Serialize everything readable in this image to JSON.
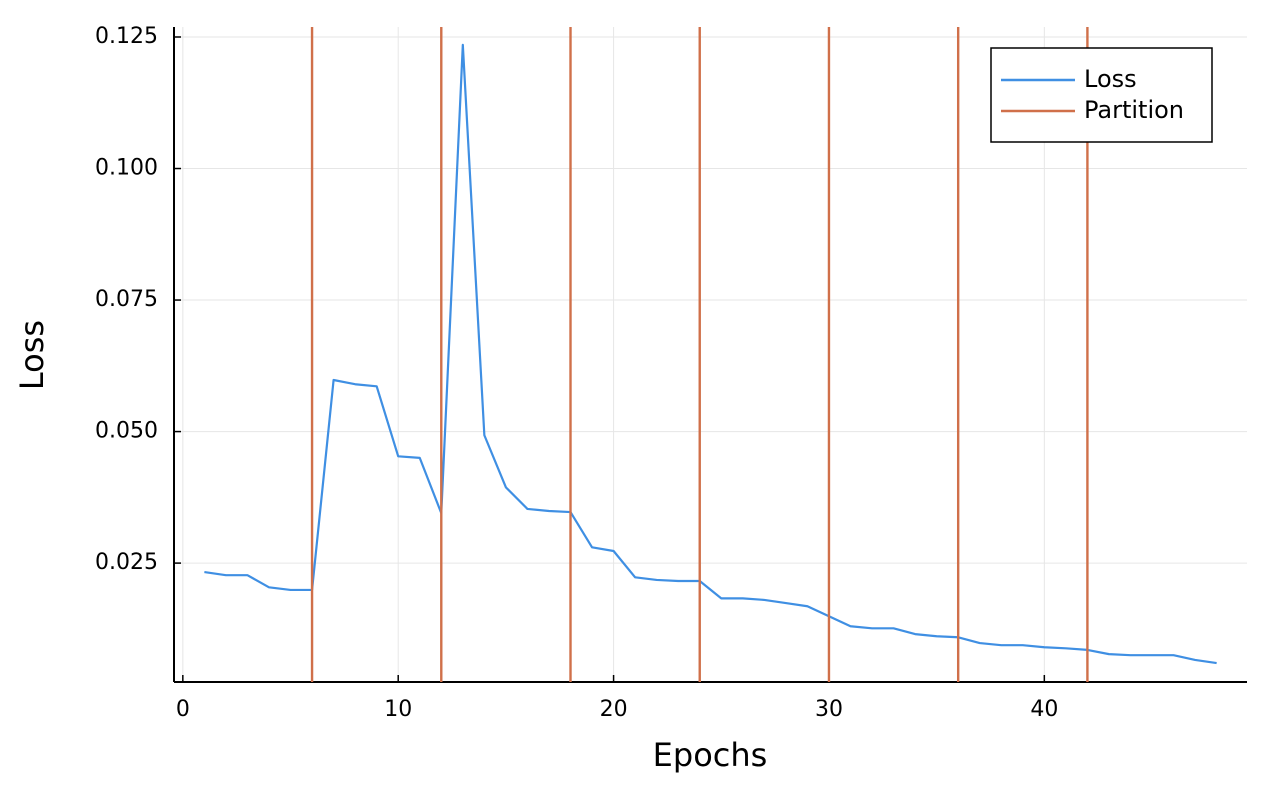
{
  "chart_data": {
    "type": "line",
    "x_label": "Epochs",
    "y_label": "Loss",
    "xlim": [
      -0.41,
      49.41
    ],
    "xticks": [
      0,
      10,
      20,
      30,
      40
    ],
    "ylim": [
      0.0024,
      0.1269
    ],
    "yticks": [
      0.025,
      {
        "value": 0.05,
        "label": "0.050"
      },
      0.075,
      {
        "value": 0.1,
        "label": "0.100"
      },
      0.125
    ],
    "grid": true,
    "legend": "top-right",
    "series": [
      {
        "name": "Loss",
        "color": "#3f8fe3",
        "x": [
          1,
          2,
          3,
          4,
          5,
          6,
          7,
          8,
          9,
          10,
          11,
          12,
          13,
          14,
          15,
          16,
          17,
          18,
          19,
          20,
          21,
          22,
          23,
          24,
          25,
          26,
          27,
          28,
          29,
          30,
          31,
          32,
          33,
          34,
          35,
          36,
          37,
          38,
          39,
          40,
          41,
          42,
          43,
          44,
          45,
          46,
          47,
          48
        ],
        "values": [
          0.0233,
          0.0227,
          0.0227,
          0.0204,
          0.0199,
          0.0199,
          0.0598,
          0.059,
          0.0586,
          0.0453,
          0.045,
          0.0345,
          0.1235,
          0.0493,
          0.0394,
          0.0353,
          0.0349,
          0.0347,
          0.028,
          0.0273,
          0.0223,
          0.0218,
          0.0216,
          0.0216,
          0.0183,
          0.0183,
          0.018,
          0.0174,
          0.0168,
          0.0149,
          0.013,
          0.0126,
          0.0126,
          0.0115,
          0.0111,
          0.0109,
          0.0098,
          0.0094,
          0.0094,
          0.009,
          0.0088,
          0.0085,
          0.0077,
          0.0075,
          0.0075,
          0.0075,
          0.0066,
          0.006
        ]
      },
      {
        "name": "Partition",
        "color": "#d0704a",
        "kind": "vline",
        "x": [
          6,
          12,
          18,
          24,
          30,
          36,
          42
        ]
      }
    ]
  }
}
